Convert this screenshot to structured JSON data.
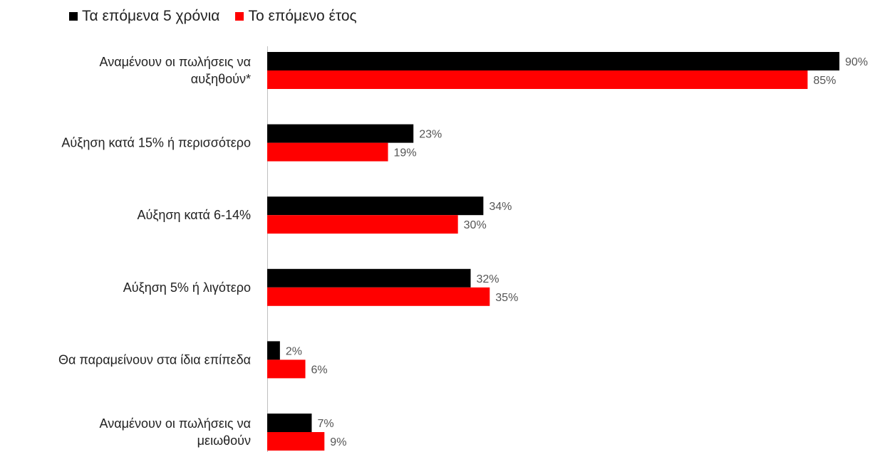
{
  "legend": [
    {
      "name": "Τα επόμενα 5 χρόνια",
      "color": "#000000"
    },
    {
      "name": "Το επόμενο έτος",
      "color": "#ff0000"
    }
  ],
  "chart_data": {
    "type": "bar",
    "orientation": "horizontal",
    "categories": [
      [
        "Αναμένουν οι πωλήσεις να",
        "αυξηθούν*"
      ],
      [
        "Αύξηση  κατά  15% ή περισσότερο"
      ],
      [
        "Αύξηση κατά 6-14%"
      ],
      [
        "Αύξηση  5% ή λιγότερο"
      ],
      [
        "Θα παραμείνουν στα ίδια επίπεδα"
      ],
      [
        "Αναμένουν οι πωλήσεις να",
        "μειωθούν"
      ]
    ],
    "series": [
      {
        "name": "Τα επόμενα 5 χρόνια",
        "color": "#000000",
        "values": [
          90,
          23,
          34,
          32,
          2,
          7
        ],
        "labels": [
          "90%",
          "23%",
          "34%",
          "32%",
          "2%",
          "7%"
        ]
      },
      {
        "name": "Το επόμενο έτος",
        "color": "#ff0000",
        "values": [
          85,
          19,
          30,
          35,
          6,
          9
        ],
        "labels": [
          "85%",
          "19%",
          "30%",
          "35%",
          "6%",
          "9%"
        ]
      }
    ],
    "xlim": [
      0,
      90
    ],
    "grid": false,
    "legend_position": "top-left"
  }
}
